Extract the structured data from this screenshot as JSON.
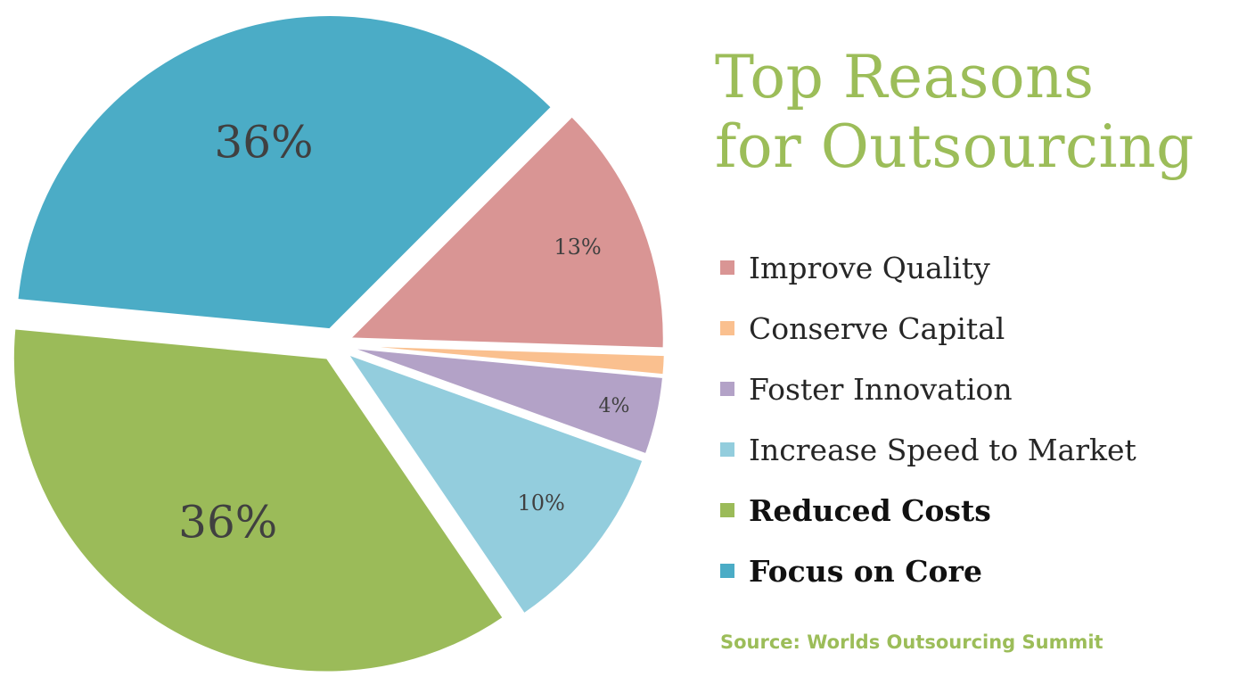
{
  "title": {
    "line1": "Top Reasons",
    "line2": "for Outsourcing"
  },
  "source": "Source: Worlds Outsourcing Summit",
  "chart_data": {
    "type": "pie",
    "title": "Top Reasons for Outsourcing",
    "legend_position": "right",
    "exploded": true,
    "slices": [
      {
        "name": "Improve Quality",
        "value": 13,
        "label": "13%",
        "color": "#d99594"
      },
      {
        "name": "Conserve Capital",
        "value": 1,
        "label": "",
        "color": "#fac08f"
      },
      {
        "name": "Foster Innovation",
        "value": 4,
        "label": "4%",
        "color": "#b3a2c7"
      },
      {
        "name": "Increase Speed to Market",
        "value": 10,
        "label": "10%",
        "color": "#93cddd"
      },
      {
        "name": "Reduced Costs",
        "value": 36,
        "label": "36%",
        "color": "#9bbb59"
      },
      {
        "name": "Focus on Core",
        "value": 36,
        "label": "36%",
        "color": "#4bacc6"
      }
    ]
  },
  "legend": [
    {
      "label": "Improve Quality",
      "color": "#d99594",
      "bold": false
    },
    {
      "label": "Conserve Capital",
      "color": "#fac08f",
      "bold": false
    },
    {
      "label": "Foster Innovation",
      "color": "#b3a2c7",
      "bold": false
    },
    {
      "label": "Increase Speed to Market",
      "color": "#93cddd",
      "bold": false
    },
    {
      "label": "Reduced Costs",
      "color": "#9bbb59",
      "bold": true
    },
    {
      "label": "Focus on Core",
      "color": "#4bacc6",
      "bold": true
    }
  ]
}
